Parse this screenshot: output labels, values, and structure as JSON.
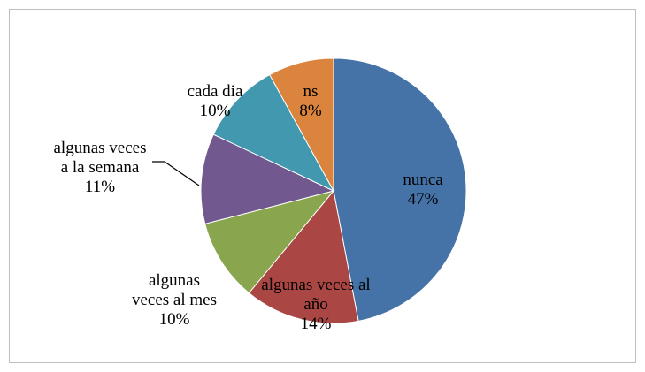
{
  "chart_data": {
    "type": "pie",
    "categories": [
      "nunca",
      "algunas veces al año",
      "algunas veces al mes",
      "algunas veces a la semana",
      "cada dia",
      "ns"
    ],
    "values": [
      47,
      14,
      10,
      11,
      10,
      8
    ],
    "value_labels": [
      "47%",
      "14%",
      "10%",
      "11%",
      "10%",
      "8%"
    ],
    "colors": [
      "#4572a7",
      "#aa4643",
      "#89a54e",
      "#71588f",
      "#4198af",
      "#db843d"
    ]
  }
}
